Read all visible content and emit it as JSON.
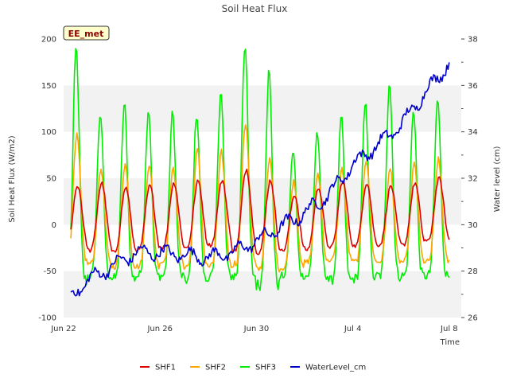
{
  "chart_data": {
    "type": "line",
    "title": "Soil Heat Flux",
    "xlabel": "Time",
    "ylabel": "Soil Heat Flux (W/m2)",
    "y2label": "Water level (cm)",
    "badge": "EE_met",
    "x_tick_labels": [
      "Jun 22",
      "Jun 26",
      "Jun 30",
      "Jul 4",
      "Jul 8"
    ],
    "x_tick_days": [
      0,
      4,
      8,
      12,
      16
    ],
    "xlim_days": [
      0,
      16.5
    ],
    "ylim": [
      -100,
      200
    ],
    "y_ticks": [
      -100,
      -50,
      0,
      50,
      100,
      150,
      200
    ],
    "y2lim": [
      26,
      38
    ],
    "y2_ticks": [
      26,
      28,
      30,
      32,
      34,
      36,
      38
    ],
    "grid": "horizontal bands",
    "legend_position": "bottom",
    "start_day": 0.3,
    "end_day": 16.0,
    "step_days": 0.05,
    "series": [
      {
        "name": "SHF1",
        "color": "#dd0000",
        "axis": "left",
        "daily_min": [
          -25,
          -28,
          -30,
          -28,
          -25,
          -25,
          -22,
          -28,
          -30,
          -28,
          -27,
          -24,
          -23,
          -22,
          -22,
          -18
        ],
        "daily_max": [
          42,
          45,
          40,
          42,
          45,
          47,
          48,
          60,
          48,
          32,
          40,
          47,
          45,
          42,
          45,
          50
        ]
      },
      {
        "name": "SHF2",
        "color": "#ffa500",
        "axis": "left",
        "daily_min": [
          -40,
          -42,
          -45,
          -45,
          -40,
          -45,
          -45,
          -42,
          -48,
          -47,
          -40,
          -38,
          -40,
          -40,
          -40,
          -40
        ],
        "daily_max": [
          95,
          60,
          65,
          65,
          60,
          80,
          78,
          110,
          70,
          48,
          55,
          60,
          70,
          60,
          65,
          70
        ]
      },
      {
        "name": "SHF3",
        "color": "#00ee00",
        "axis": "left",
        "daily_min": [
          -60,
          -55,
          -58,
          -55,
          -55,
          -60,
          -55,
          -55,
          -65,
          -55,
          -55,
          -60,
          -58,
          -55,
          -55,
          -55
        ],
        "daily_max": [
          190,
          120,
          130,
          125,
          120,
          120,
          145,
          195,
          165,
          80,
          100,
          115,
          130,
          155,
          125,
          135
        ]
      },
      {
        "name": "WaterLevel_cm",
        "color": "#0000cc",
        "axis": "right",
        "trend": [
          [
            0.3,
            26.9
          ],
          [
            1.0,
            27.6
          ],
          [
            2.0,
            28.2
          ],
          [
            3.0,
            28.8
          ],
          [
            4.0,
            28.8
          ],
          [
            5.0,
            28.7
          ],
          [
            6.0,
            28.6
          ],
          [
            7.0,
            28.8
          ],
          [
            8.0,
            29.3
          ],
          [
            9.0,
            29.9
          ],
          [
            10.0,
            30.5
          ],
          [
            11.0,
            31.3
          ],
          [
            12.0,
            32.6
          ],
          [
            13.0,
            33.4
          ],
          [
            14.0,
            34.3
          ],
          [
            15.0,
            35.7
          ],
          [
            15.5,
            36.3
          ],
          [
            16.0,
            37.0
          ]
        ]
      }
    ]
  }
}
